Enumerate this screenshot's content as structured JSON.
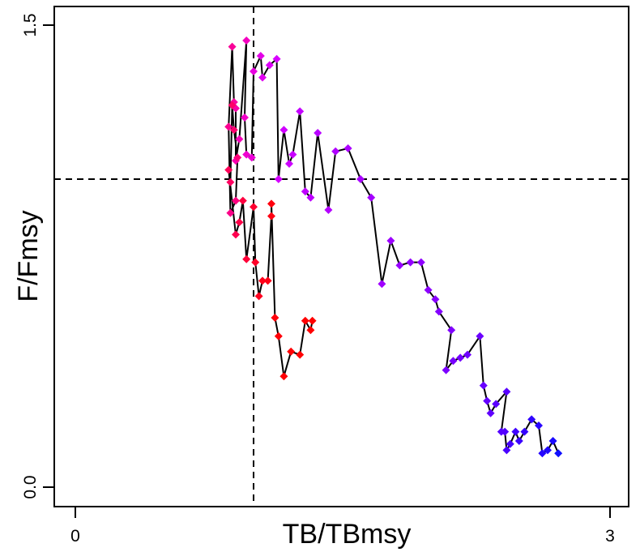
{
  "chart_data": {
    "type": "scatter",
    "title": "",
    "xlabel": "TB/TBmsy",
    "ylabel": "F/Fmsy",
    "xlim": [
      0,
      3
    ],
    "ylim": [
      0,
      1.5
    ],
    "x_ticks": [
      "0",
      "3"
    ],
    "y_ticks": [
      "0.0",
      "1.5"
    ],
    "x_tick_values": [
      0,
      3
    ],
    "y_tick_values": [
      0,
      1.5
    ],
    "grid": false,
    "reference_lines": {
      "x": 1.0,
      "y": 1.0,
      "style": "dashed"
    },
    "series_line_color": "#000000",
    "marker": "diamond",
    "color_gradient": [
      "#0000ff",
      "#8000ff",
      "#ff00ff",
      "#ff0000"
    ],
    "points": [
      {
        "x": 2.71,
        "y": 0.11,
        "color": "#1010ff"
      },
      {
        "x": 2.68,
        "y": 0.15,
        "color": "#1a0aff"
      },
      {
        "x": 2.65,
        "y": 0.12,
        "color": "#2008ff"
      },
      {
        "x": 2.62,
        "y": 0.11,
        "color": "#2506ff"
      },
      {
        "x": 2.6,
        "y": 0.2,
        "color": "#2a05ff"
      },
      {
        "x": 2.56,
        "y": 0.22,
        "color": "#3004ff"
      },
      {
        "x": 2.52,
        "y": 0.18,
        "color": "#3503ff"
      },
      {
        "x": 2.49,
        "y": 0.15,
        "color": "#3a02ff"
      },
      {
        "x": 2.47,
        "y": 0.18,
        "color": "#4002ff"
      },
      {
        "x": 2.44,
        "y": 0.14,
        "color": "#4501ff"
      },
      {
        "x": 2.42,
        "y": 0.12,
        "color": "#4a01ff"
      },
      {
        "x": 2.41,
        "y": 0.18,
        "color": "#5000ff"
      },
      {
        "x": 2.39,
        "y": 0.18,
        "color": "#5500ff"
      },
      {
        "x": 2.42,
        "y": 0.31,
        "color": "#5800ff"
      },
      {
        "x": 2.36,
        "y": 0.27,
        "color": "#5c00ff"
      },
      {
        "x": 2.33,
        "y": 0.24,
        "color": "#6000ff"
      },
      {
        "x": 2.31,
        "y": 0.28,
        "color": "#6400ff"
      },
      {
        "x": 2.29,
        "y": 0.33,
        "color": "#6800ff"
      },
      {
        "x": 2.27,
        "y": 0.49,
        "color": "#6c00ff"
      },
      {
        "x": 2.2,
        "y": 0.43,
        "color": "#7000ff"
      },
      {
        "x": 2.16,
        "y": 0.42,
        "color": "#7400ff"
      },
      {
        "x": 2.12,
        "y": 0.41,
        "color": "#7800ff"
      },
      {
        "x": 2.08,
        "y": 0.38,
        "color": "#7c00ff"
      },
      {
        "x": 2.11,
        "y": 0.51,
        "color": "#8000ff"
      },
      {
        "x": 2.04,
        "y": 0.57,
        "color": "#8400ff"
      },
      {
        "x": 2.02,
        "y": 0.61,
        "color": "#8800ff"
      },
      {
        "x": 1.98,
        "y": 0.64,
        "color": "#8c00ff"
      },
      {
        "x": 1.94,
        "y": 0.73,
        "color": "#9000ff"
      },
      {
        "x": 1.88,
        "y": 0.73,
        "color": "#9400ff"
      },
      {
        "x": 1.82,
        "y": 0.72,
        "color": "#9800ff"
      },
      {
        "x": 1.77,
        "y": 0.8,
        "color": "#9c00ff"
      },
      {
        "x": 1.72,
        "y": 0.66,
        "color": "#a000ff"
      },
      {
        "x": 1.66,
        "y": 0.94,
        "color": "#a400ff"
      },
      {
        "x": 1.6,
        "y": 1.0,
        "color": "#a800ff"
      },
      {
        "x": 1.53,
        "y": 1.1,
        "color": "#ac00ff"
      },
      {
        "x": 1.46,
        "y": 1.09,
        "color": "#b000ff"
      },
      {
        "x": 1.42,
        "y": 0.9,
        "color": "#b400ff"
      },
      {
        "x": 1.36,
        "y": 1.15,
        "color": "#b800ff"
      },
      {
        "x": 1.32,
        "y": 0.94,
        "color": "#bc00ff"
      },
      {
        "x": 1.29,
        "y": 0.96,
        "color": "#c000ff"
      },
      {
        "x": 1.26,
        "y": 1.22,
        "color": "#c400ff"
      },
      {
        "x": 1.22,
        "y": 1.08,
        "color": "#c800ff"
      },
      {
        "x": 1.2,
        "y": 1.05,
        "color": "#cc00ff"
      },
      {
        "x": 1.17,
        "y": 1.16,
        "color": "#d000ff"
      },
      {
        "x": 1.14,
        "y": 1.0,
        "color": "#d400ff"
      },
      {
        "x": 1.13,
        "y": 1.39,
        "color": "#d800ff"
      },
      {
        "x": 1.09,
        "y": 1.37,
        "color": "#dc00f8"
      },
      {
        "x": 1.05,
        "y": 1.33,
        "color": "#e000f0"
      },
      {
        "x": 1.04,
        "y": 1.4,
        "color": "#e400e8"
      },
      {
        "x": 1.0,
        "y": 1.35,
        "color": "#e800e0"
      },
      {
        "x": 0.99,
        "y": 1.07,
        "color": "#ec00d8"
      },
      {
        "x": 0.96,
        "y": 1.08,
        "color": "#f000d0"
      },
      {
        "x": 0.95,
        "y": 1.2,
        "color": "#f200c8"
      },
      {
        "x": 0.96,
        "y": 1.45,
        "color": "#f400c0"
      },
      {
        "x": 0.92,
        "y": 1.13,
        "color": "#f500b8"
      },
      {
        "x": 0.9,
        "y": 1.06,
        "color": "#f600b0"
      },
      {
        "x": 0.9,
        "y": 1.23,
        "color": "#f700a8"
      },
      {
        "x": 0.89,
        "y": 1.25,
        "color": "#f800a0"
      },
      {
        "x": 0.88,
        "y": 1.43,
        "color": "#f90098"
      },
      {
        "x": 0.86,
        "y": 1.17,
        "color": "#fa0090"
      },
      {
        "x": 0.87,
        "y": 0.89,
        "color": "#fb0088"
      },
      {
        "x": 0.9,
        "y": 0.93,
        "color": "#fc0080"
      },
      {
        "x": 0.91,
        "y": 1.07,
        "color": "#fc0078"
      },
      {
        "x": 0.89,
        "y": 1.16,
        "color": "#fd0070"
      },
      {
        "x": 0.88,
        "y": 1.24,
        "color": "#fd0068"
      },
      {
        "x": 0.87,
        "y": 0.99,
        "color": "#fd0060"
      },
      {
        "x": 0.86,
        "y": 1.03,
        "color": "#fe0058"
      },
      {
        "x": 0.9,
        "y": 0.82,
        "color": "#fe0050"
      },
      {
        "x": 0.92,
        "y": 0.86,
        "color": "#fe0048"
      },
      {
        "x": 0.94,
        "y": 0.93,
        "color": "#fe0040"
      },
      {
        "x": 0.96,
        "y": 0.74,
        "color": "#ff0038"
      },
      {
        "x": 1.0,
        "y": 0.91,
        "color": "#ff0030"
      },
      {
        "x": 1.01,
        "y": 0.73,
        "color": "#ff0028"
      },
      {
        "x": 1.03,
        "y": 0.62,
        "color": "#ff0020"
      },
      {
        "x": 1.05,
        "y": 0.67,
        "color": "#ff001a"
      },
      {
        "x": 1.08,
        "y": 0.67,
        "color": "#ff0016"
      },
      {
        "x": 1.1,
        "y": 0.88,
        "color": "#ff0012"
      },
      {
        "x": 1.1,
        "y": 0.92,
        "color": "#ff000e"
      },
      {
        "x": 1.12,
        "y": 0.55,
        "color": "#ff000b"
      },
      {
        "x": 1.14,
        "y": 0.49,
        "color": "#ff0008"
      },
      {
        "x": 1.17,
        "y": 0.36,
        "color": "#ff0006"
      },
      {
        "x": 1.21,
        "y": 0.44,
        "color": "#ff0004"
      },
      {
        "x": 1.26,
        "y": 0.43,
        "color": "#ff0003"
      },
      {
        "x": 1.29,
        "y": 0.54,
        "color": "#ff0002"
      },
      {
        "x": 1.32,
        "y": 0.51,
        "color": "#ff0001"
      },
      {
        "x": 1.33,
        "y": 0.54,
        "color": "#ff0000"
      }
    ]
  }
}
